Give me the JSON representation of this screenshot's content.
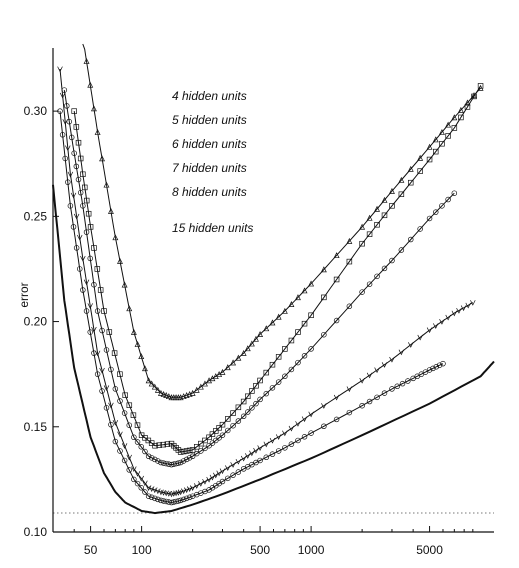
{
  "chart_data": {
    "type": "line",
    "xscale": "log",
    "xlim": [
      30,
      12000
    ],
    "ylim": [
      0.1,
      0.33
    ],
    "x_ticks": [
      50,
      100,
      500,
      1000,
      5000
    ],
    "x_tick_labels": [
      "50",
      "100",
      "500",
      "1000",
      "5000"
    ],
    "y_ticks": [
      0.1,
      0.15,
      0.2,
      0.25,
      0.3
    ],
    "y_tick_labels": [
      "0.10",
      "0.15",
      "0.20",
      "0.25",
      "0.30"
    ],
    "xlabel": "",
    "ylabel": "error",
    "reference_line_y": 0.109,
    "legend": [
      "4 hidden units",
      "5 hidden units",
      "6 hidden units",
      "7 hidden units",
      "8 hidden units",
      "15 hidden units"
    ],
    "legend_placement": "top-center",
    "grid": false,
    "series": [
      {
        "name": "4 hidden units",
        "marker": "triangle",
        "x": [
          45,
          55,
          70,
          90,
          110,
          130,
          150,
          170,
          200,
          250,
          300,
          400,
          500,
          700,
          1000,
          2000,
          3000,
          5000,
          7000,
          10000
        ],
        "y": [
          0.335,
          0.29,
          0.24,
          0.195,
          0.172,
          0.166,
          0.164,
          0.164,
          0.166,
          0.172,
          0.176,
          0.185,
          0.194,
          0.205,
          0.218,
          0.245,
          0.262,
          0.283,
          0.297,
          0.311
        ]
      },
      {
        "name": "5 hidden units",
        "marker": "square",
        "x": [
          40,
          45,
          50,
          60,
          80,
          100,
          120,
          150,
          170,
          200,
          250,
          300,
          400,
          500,
          700,
          1000,
          2000,
          3000,
          5000,
          7000,
          10000
        ],
        "y": [
          0.3,
          0.27,
          0.245,
          0.205,
          0.165,
          0.146,
          0.141,
          0.142,
          0.138,
          0.139,
          0.145,
          0.151,
          0.162,
          0.172,
          0.187,
          0.203,
          0.237,
          0.255,
          0.277,
          0.292,
          0.312
        ]
      },
      {
        "name": "6 hidden units",
        "marker": "circle",
        "x": [
          35,
          40,
          45,
          55,
          70,
          90,
          110,
          130,
          150,
          170,
          200,
          250,
          300,
          400,
          500,
          700,
          1000,
          2000,
          3000,
          5000,
          7000
        ],
        "y": [
          0.31,
          0.28,
          0.255,
          0.205,
          0.168,
          0.145,
          0.136,
          0.133,
          0.132,
          0.133,
          0.136,
          0.141,
          0.146,
          0.155,
          0.163,
          0.174,
          0.187,
          0.214,
          0.229,
          0.249,
          0.261
        ]
      },
      {
        "name": "7 hidden units",
        "marker": "v",
        "x": [
          33,
          38,
          45,
          55,
          70,
          90,
          110,
          130,
          150,
          170,
          200,
          250,
          300,
          400,
          500,
          700,
          1000,
          2000,
          3000,
          5000,
          7000,
          9000
        ],
        "y": [
          0.32,
          0.27,
          0.23,
          0.185,
          0.152,
          0.13,
          0.121,
          0.119,
          0.118,
          0.119,
          0.121,
          0.125,
          0.129,
          0.135,
          0.14,
          0.147,
          0.156,
          0.172,
          0.182,
          0.196,
          0.204,
          0.209
        ]
      },
      {
        "name": "8 hidden units",
        "marker": "circle",
        "x": [
          33,
          38,
          45,
          55,
          70,
          90,
          110,
          130,
          150,
          170,
          200,
          250,
          300,
          400,
          500,
          700,
          1000,
          2000,
          3000,
          4000,
          5000,
          6000
        ],
        "y": [
          0.3,
          0.255,
          0.215,
          0.175,
          0.143,
          0.125,
          0.117,
          0.115,
          0.114,
          0.115,
          0.117,
          0.12,
          0.124,
          0.13,
          0.134,
          0.14,
          0.147,
          0.16,
          0.168,
          0.173,
          0.177,
          0.18
        ]
      },
      {
        "name": "15 hidden units",
        "marker": "none",
        "x": [
          30,
          35,
          40,
          50,
          60,
          70,
          80,
          100,
          120,
          150,
          200,
          300,
          500,
          1000,
          2000,
          5000,
          10000,
          12000
        ],
        "y": [
          0.265,
          0.21,
          0.178,
          0.145,
          0.128,
          0.119,
          0.114,
          0.11,
          0.109,
          0.11,
          0.113,
          0.118,
          0.125,
          0.135,
          0.146,
          0.161,
          0.174,
          0.181
        ]
      }
    ]
  }
}
